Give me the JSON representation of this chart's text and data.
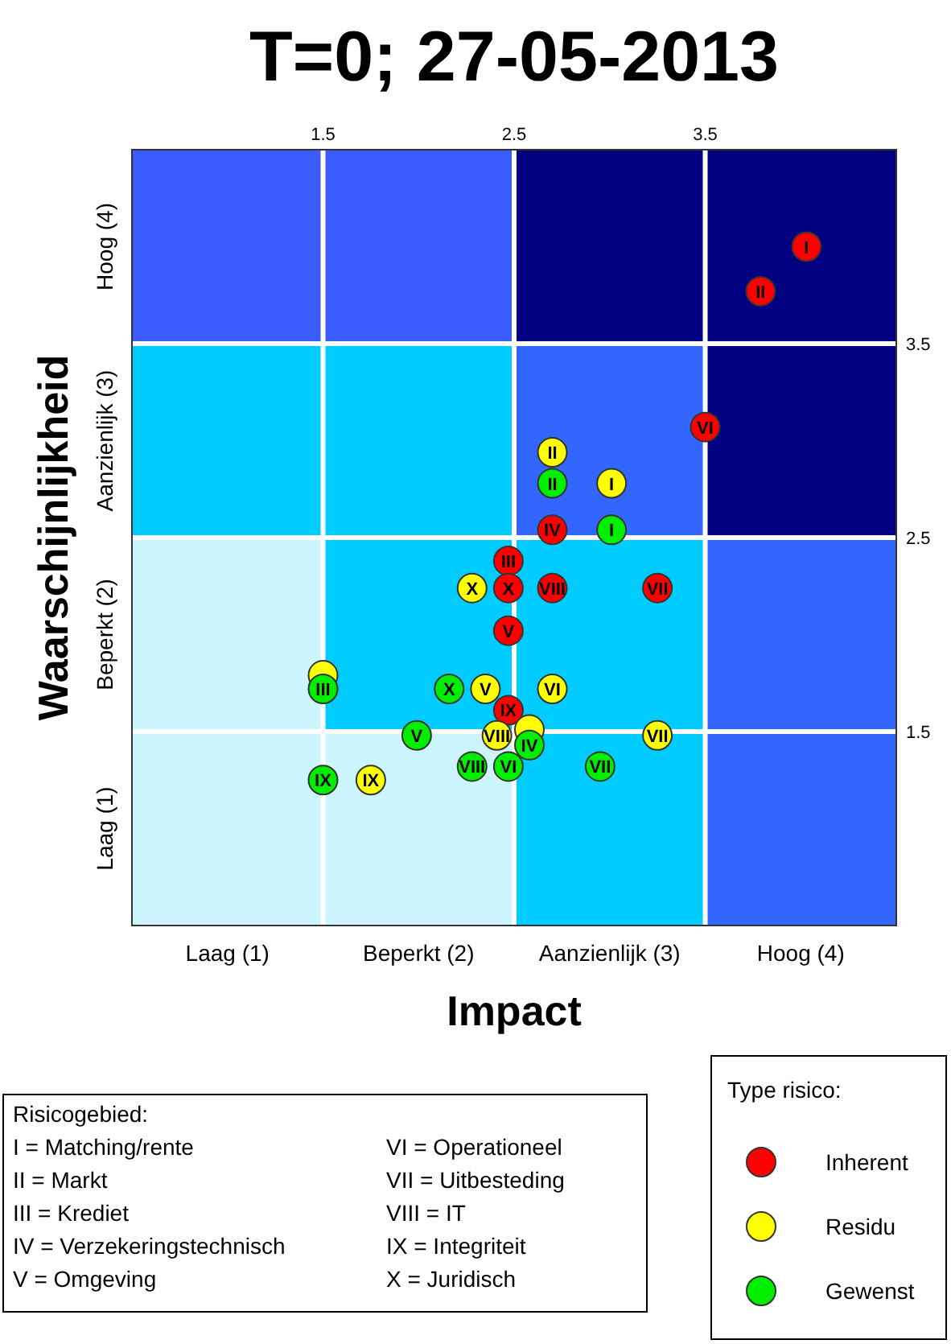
{
  "chart_data": {
    "type": "scatter",
    "title": "T=0; 27-05-2013",
    "xlabel": "Impact",
    "ylabel": "Waarschijnlijkheid",
    "legend_title": "Type risico:",
    "legend": "bottom right",
    "marker": "circle",
    "grid": true,
    "xlim": [
      0.5,
      4.5
    ],
    "ylim": [
      0.5,
      4.5
    ],
    "x2lim": [
      0.5,
      4.5
    ],
    "y2lim": [
      0.5,
      4.5
    ],
    "xticks": [
      {
        "value": 1,
        "label": "Laag (1)"
      },
      {
        "value": 2,
        "label": "Beperkt (2)"
      },
      {
        "value": 3,
        "label": "Aanzienlijk (3)"
      },
      {
        "value": 4,
        "label": "Hoog (4)"
      }
    ],
    "yticks": [
      {
        "value": 1,
        "label": "Laag (1)"
      },
      {
        "value": 2,
        "label": "Beperkt (2)"
      },
      {
        "value": 3,
        "label": "Aanzienlijk (3)"
      },
      {
        "value": 4,
        "label": "Hoog (4)"
      }
    ],
    "x2ticks": [
      1.5,
      2.5,
      3.5
    ],
    "y2ticks": [
      1.5,
      2.5,
      3.5
    ],
    "series": [
      {
        "name": "Inherent",
        "color": "#ff0000",
        "x": [
          4.03,
          3.79,
          2.47,
          2.7,
          2.47,
          3.5,
          3.25,
          2.7,
          2.47,
          2.47
        ],
        "values": [
          4.0,
          3.77,
          2.38,
          2.54,
          2.02,
          3.07,
          2.24,
          2.24,
          1.61,
          2.24
        ],
        "value_labels": [
          "I",
          "II",
          "III",
          "IV",
          "V",
          "VI",
          "VII",
          "VIII",
          "IX",
          "X"
        ]
      },
      {
        "name": "Residu",
        "color": "#ffff00",
        "x": [
          3.01,
          2.7,
          1.5,
          2.58,
          2.35,
          2.7,
          3.25,
          2.41,
          1.75,
          2.28
        ],
        "values": [
          2.78,
          2.94,
          1.79,
          1.51,
          1.72,
          1.72,
          1.48,
          1.48,
          1.25,
          2.24
        ],
        "value_labels": [
          "I",
          "II",
          null,
          null,
          "V",
          "VI",
          "VII",
          "VIII",
          "IX",
          "X"
        ]
      },
      {
        "name": "Gewenst",
        "color": "#00ee00",
        "x": [
          3.01,
          2.7,
          1.5,
          2.58,
          1.99,
          2.47,
          2.95,
          2.28,
          1.5,
          2.16
        ],
        "values": [
          2.54,
          2.78,
          1.72,
          1.43,
          1.48,
          1.32,
          1.32,
          1.32,
          1.25,
          1.72
        ],
        "value_labels": [
          "I",
          "II",
          "III",
          "IV",
          "V",
          "VI",
          "VII",
          "VIII",
          "IX",
          "X"
        ]
      }
    ],
    "annotations": [
      "Risicogebied:",
      "I = Matching/rente",
      "II = Markt",
      "III = Krediet",
      "IV = Verzekeringstechnisch",
      "V = Omgeving",
      "VI = Operationeel",
      "VII = Uitbesteding",
      "VIII = IT",
      "IX = Integriteit",
      "X = Juridisch"
    ]
  }
}
